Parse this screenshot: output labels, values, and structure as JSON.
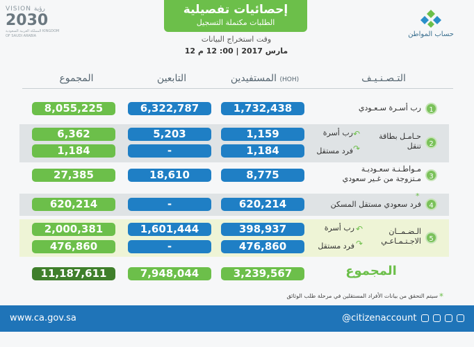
{
  "header": {
    "title": "إحصائيات تفصيلية",
    "subtitle": "الطلبات مكتملة التسجيل",
    "time_label": "وقت استخراج البيانات",
    "time_value": "12 مارس 2017 | 00: 12 م",
    "brand_right": "حساب المواطن",
    "vision_label": "VISION",
    "vision_year": "2030",
    "vision_arabic": "رؤية",
    "vision_small": "المملكة العربية السعودية KINGDOM OF SAUDI ARABIA"
  },
  "columns": {
    "category": "التـصـنـيـف",
    "beneficiaries": "المستفيدين",
    "beneficiaries_note": "(HOH)",
    "dependents": "التابعين",
    "total": "المجموع"
  },
  "rows": [
    {
      "num": "1",
      "label": "رب أسـرة سـعـودي",
      "beneficiaries": "1,732,438",
      "dependents": "6,322,787",
      "total": "8,055,225"
    },
    {
      "num": "2",
      "label": "حـامـل بطاقة تنقل",
      "sub": [
        {
          "label": "رب أسرة",
          "beneficiaries": "1,159",
          "dependents": "5,203",
          "total": "6,362"
        },
        {
          "label": "فرد مستقل",
          "beneficiaries": "1,184",
          "dependents": "-",
          "total": "1,184"
        }
      ]
    },
    {
      "num": "3",
      "label": "مـواطـنـة سعـوديـة",
      "label2": "مـتزوجة من غـير سعودي",
      "beneficiaries": "8,775",
      "dependents": "18,610",
      "total": "27,385"
    },
    {
      "num": "4",
      "label": "فرد سعودي مستقل المسكن",
      "star": "*",
      "beneficiaries": "620,214",
      "dependents": "-",
      "total": "620,214"
    },
    {
      "num": "5",
      "label": "الـضـمــان",
      "label2": "الاجـتـمـاعـي",
      "sub": [
        {
          "label": "رب أسرة",
          "beneficiaries": "398,937",
          "dependents": "1,601,444",
          "total": "2,000,381"
        },
        {
          "label": "فرد مستقل",
          "beneficiaries": "476,860",
          "dependents": "-",
          "total": "476,860"
        }
      ]
    }
  ],
  "totals": {
    "label": "المجموع",
    "beneficiaries": "3,239,567",
    "dependents": "7,948,044",
    "total": "11,187,611"
  },
  "note": "سيتم التحقق من بيانات الأفراد المستقلين في مرحلة طلب الوثائق",
  "note_star": "*",
  "footer": {
    "url": "www.ca.gov.sa",
    "handle": "@citizenaccount"
  },
  "colors": {
    "green": "#6cbf4a",
    "blue": "#1f7fc5",
    "dark_green": "#3f7f2b",
    "footer": "#1f74b8"
  }
}
